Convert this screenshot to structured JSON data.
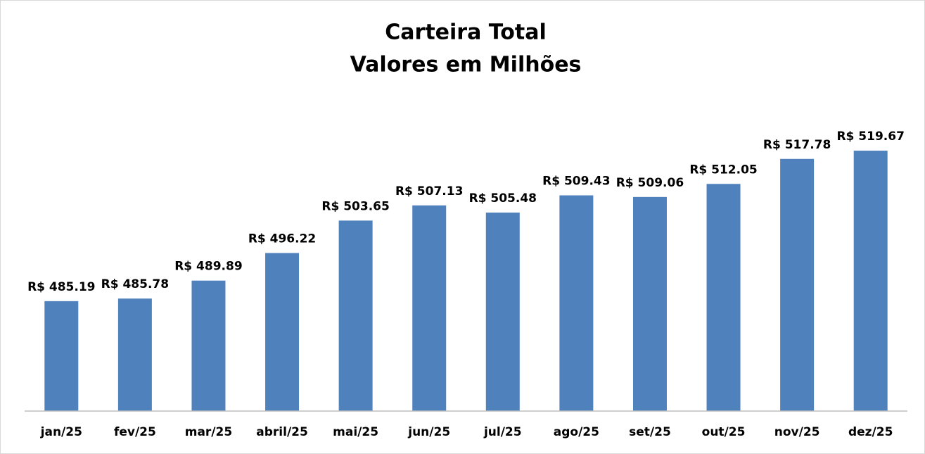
{
  "chart_data": {
    "type": "bar",
    "title": "Carteira Total",
    "subtitle": "Valores em Milhões",
    "categories": [
      "jan/25",
      "fev/25",
      "mar/25",
      "abril/25",
      "mai/25",
      "jun/25",
      "jul/25",
      "ago/25",
      "set/25",
      "out/25",
      "nov/25",
      "dez/25"
    ],
    "values": [
      485.19,
      485.78,
      489.89,
      496.22,
      503.65,
      507.13,
      505.48,
      509.43,
      509.06,
      512.05,
      517.78,
      519.67
    ],
    "value_labels": [
      "R$ 485.19",
      "R$ 485.78",
      "R$ 489.89",
      "R$ 496.22",
      "R$ 503.65",
      "R$ 507.13",
      "R$ 505.48",
      "R$ 509.43",
      "R$ 509.06",
      "R$ 512.05",
      "R$ 517.78",
      "R$ 519.67"
    ],
    "color": "#4f81bd",
    "ylim": [
      460,
      525
    ]
  }
}
